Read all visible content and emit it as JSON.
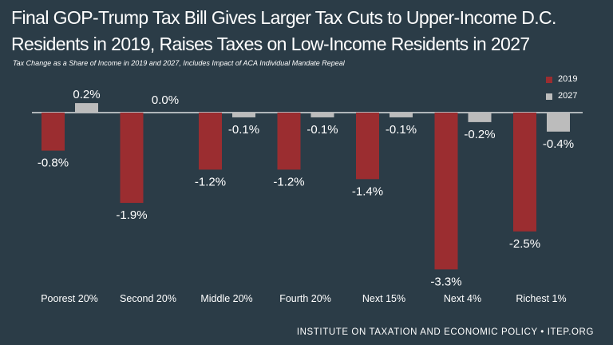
{
  "chart_data": {
    "type": "bar",
    "title": "Final GOP-Trump Tax Bill Gives Larger Tax Cuts to Upper-Income D.C. Residents in 2019, Raises Taxes on Low-Income Residents in 2027",
    "subtitle": "Tax Change as a Share of Income in 2019 and 2027, Includes Impact of ACA Individual Mandate Repeal",
    "categories": [
      "Poorest 20%",
      "Second 20%",
      "Middle 20%",
      "Fourth 20%",
      "Next 15%",
      "Next 4%",
      "Richest 1%"
    ],
    "series": [
      {
        "name": "2019",
        "values": [
          -0.8,
          -1.9,
          -1.2,
          -1.2,
          -1.4,
          -3.3,
          -2.5
        ],
        "labels": [
          "-0.8%",
          "-1.9%",
          "-1.2%",
          "-1.2%",
          "-1.4%",
          "-3.3%",
          "-2.5%"
        ],
        "color": "#9b2d30"
      },
      {
        "name": "2027",
        "values": [
          0.2,
          0.0,
          -0.1,
          -0.1,
          -0.1,
          -0.2,
          -0.4
        ],
        "labels": [
          "0.2%",
          "0.0%",
          "-0.1%",
          "-0.1%",
          "-0.1%",
          "-0.2%",
          "-0.4%"
        ],
        "color": "#bcbcbc"
      }
    ],
    "ylim": [
      -3.3,
      0.2
    ],
    "legend_position": "top-right",
    "grid": false,
    "background": "#2b3c47",
    "baseline_color": "#ffffff"
  },
  "footer": "INSTITUTE ON TAXATION AND ECONOMIC POLICY • ITEP.ORG"
}
